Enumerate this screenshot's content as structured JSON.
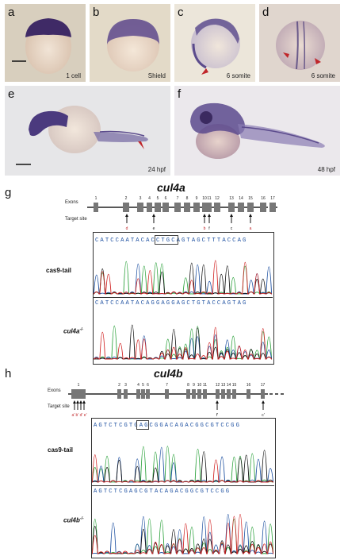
{
  "panels": {
    "a": {
      "label": "a",
      "stage": "1 cell"
    },
    "b": {
      "label": "b",
      "stage": "Shield"
    },
    "c": {
      "label": "c",
      "stage": "6 somite"
    },
    "d": {
      "label": "d",
      "stage": "6 somite"
    },
    "e": {
      "label": "e",
      "stage": "24 hpf"
    },
    "f": {
      "label": "f",
      "stage": "48 hpf"
    }
  },
  "g": {
    "label": "g",
    "gene": "cul4a",
    "exons_label": "Exons",
    "target_label": "Target site",
    "exon_numbers": [
      "1",
      "2",
      "3",
      "4",
      "5",
      "6",
      "7",
      "8",
      "9",
      "10",
      "11",
      "12",
      "13",
      "14",
      "15",
      "16",
      "17"
    ],
    "targets": [
      "d",
      "e",
      "b",
      "f",
      "c",
      "a"
    ],
    "seq": "CATCCAATACACCTGCAGTAGCTTTACCAG",
    "seq_mut": "CATCCAATACAGGAGGAGCTGTACCAGTAG",
    "row1": "cas9-tail",
    "row2": "cul4a",
    "row2_sup": "-/-"
  },
  "h": {
    "label": "h",
    "gene": "cul4b",
    "exons_label": "Exons",
    "target_label": "Target site",
    "exon_numbers": [
      "1",
      "2",
      "3",
      "4",
      "5",
      "6",
      "7",
      "8",
      "9",
      "10",
      "11",
      "12",
      "13",
      "14",
      "15",
      "16",
      "17"
    ],
    "targets_first": "a' b' d' e'",
    "targets": [
      "f'",
      "c'"
    ],
    "seq": "AGTCTCGTGAGCGGACAGACGGCGTCCGG",
    "seq_mut": "AGTCTCGAGCGTACAGACGGCGTCCGG",
    "row1": "cas9-tail",
    "row2": "cul4b",
    "row2_sup": "-/-"
  }
}
